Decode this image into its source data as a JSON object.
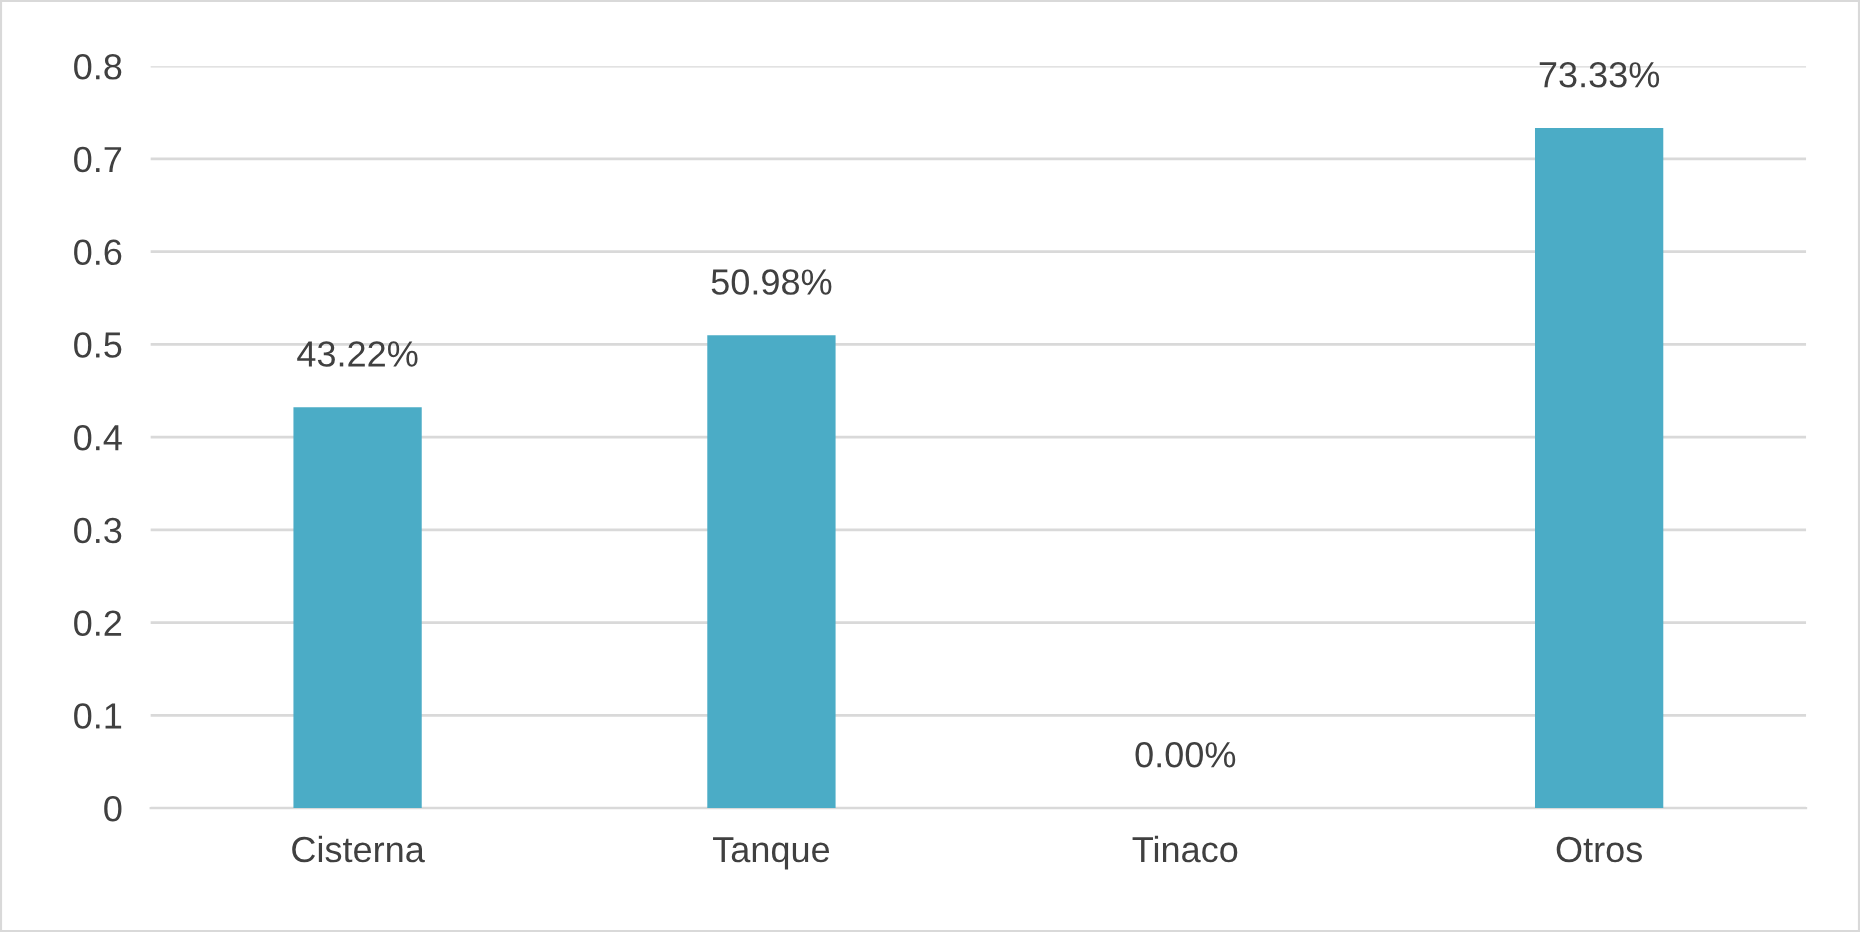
{
  "chart_data": {
    "type": "bar",
    "categories": [
      "Cisterna",
      "Tanque",
      "Tinaco",
      "Otros"
    ],
    "values": [
      0.4322,
      0.5098,
      0,
      0.7333
    ],
    "value_labels": [
      "43.22%",
      "50.98%",
      "0.00%",
      "73.33%"
    ],
    "color": "#4bacc6",
    "ylim": [
      0,
      0.8
    ],
    "yticks": [
      0,
      0.1,
      0.2,
      0.3,
      0.4,
      0.5,
      0.6,
      0.7,
      0.8
    ],
    "grid": "y",
    "legend": false
  }
}
